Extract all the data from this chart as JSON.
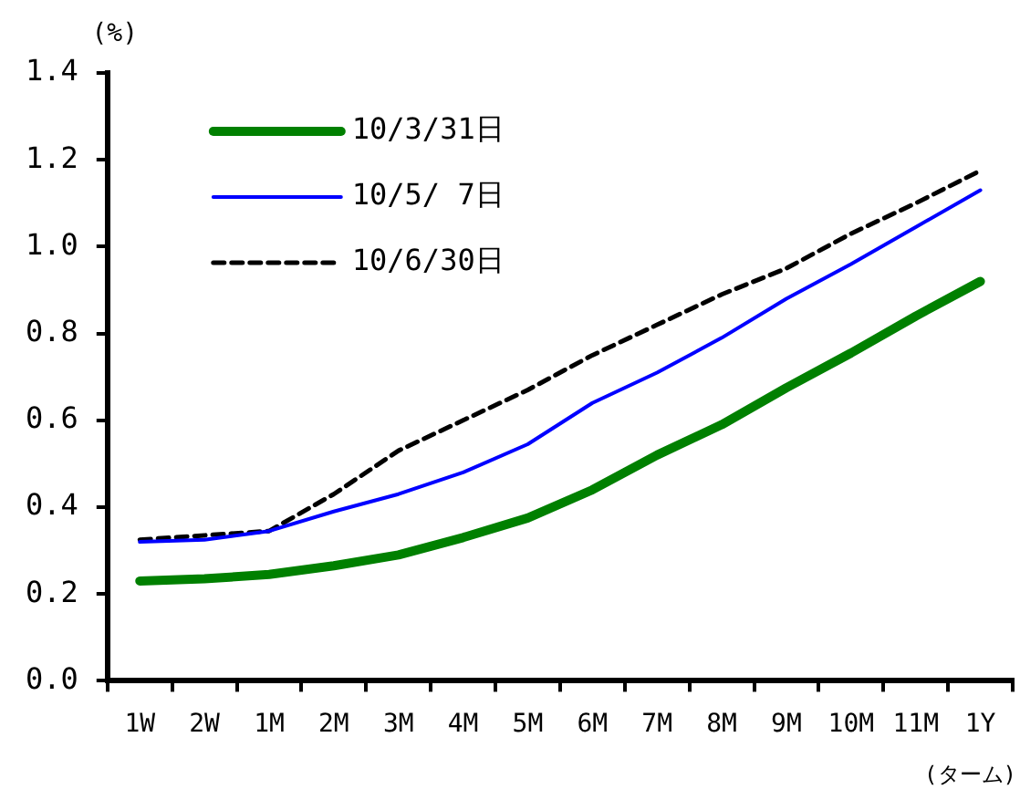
{
  "chart_data": {
    "type": "line",
    "ylabel": "(%)",
    "xlabel": "(ターム)",
    "categories": [
      "1W",
      "2W",
      "1M",
      "2M",
      "3M",
      "4M",
      "5M",
      "6M",
      "7M",
      "8M",
      "9M",
      "10M",
      "11M",
      "1Y"
    ],
    "ylim": [
      0,
      1.4
    ],
    "yticks": [
      {
        "value": 0,
        "label": "0.0"
      },
      {
        "value": 0.2,
        "label": "0.2"
      },
      {
        "value": 0.4,
        "label": "0.4"
      },
      {
        "value": 0.6,
        "label": "0.6"
      },
      {
        "value": 0.8,
        "label": "0.8"
      },
      {
        "value": 1,
        "label": "1.0"
      },
      {
        "value": 1.2,
        "label": "1.2"
      },
      {
        "value": 1.4,
        "label": "1.4"
      }
    ],
    "grid": false,
    "legend": "top left",
    "marker": "none",
    "series": [
      {
        "name": "10/3/31日",
        "color": "#008000",
        "line_style": "solid",
        "values": [
          0.23,
          0.235,
          0.245,
          0.265,
          0.29,
          0.33,
          0.375,
          0.44,
          0.52,
          0.59,
          0.675,
          0.755,
          0.84,
          0.92
        ]
      },
      {
        "name": "10/5/ 7日",
        "color": "#0000ff",
        "line_style": "solid",
        "values": [
          0.32,
          0.325,
          0.345,
          0.39,
          0.43,
          0.48,
          0.545,
          0.64,
          0.71,
          0.79,
          0.88,
          0.96,
          1.045,
          1.13
        ]
      },
      {
        "name": "10/6/30日",
        "color": "#000000",
        "line_style": "dashed",
        "values": [
          0.325,
          0.335,
          0.345,
          0.43,
          0.53,
          0.6,
          0.67,
          0.75,
          0.82,
          0.89,
          0.95,
          1.03,
          1.1,
          1.175
        ]
      }
    ]
  }
}
